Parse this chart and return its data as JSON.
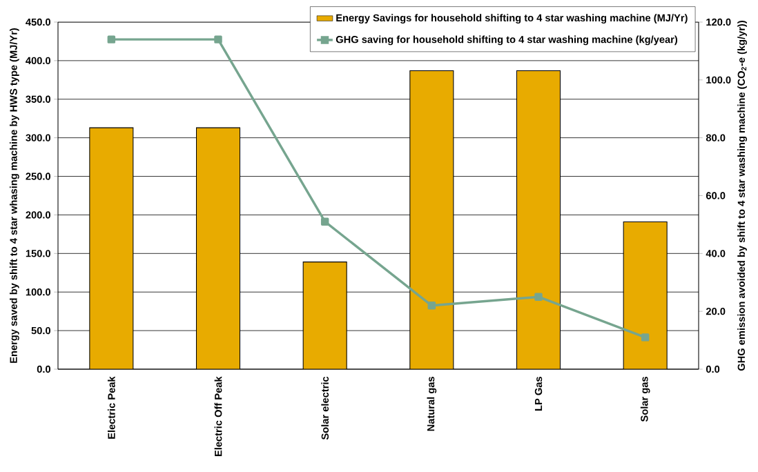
{
  "chart_data": {
    "type": "bar",
    "categories": [
      "Electric Peak",
      "Electric Off Peak",
      "Solar electric",
      "Natural gas",
      "LP Gas",
      "Solar gas"
    ],
    "series": [
      {
        "name": "Energy Savings for household shifting to 4 star washing machine (MJ/Yr)",
        "color": "#e8ab00",
        "values": [
          313,
          313,
          139,
          387,
          387,
          191
        ]
      },
      {
        "name": "GHG saving for household shifting to 4 star washing machine (kg/year)",
        "type": "line",
        "axis": "y2",
        "color": "#76a58f",
        "marker": "square",
        "values": [
          114,
          114,
          51,
          22,
          25,
          11
        ]
      }
    ],
    "ylabel": "Energy saved by shift to 4 star whasing machine by HWS type (MJ/Yr)",
    "y2label": "GHG emission avoided by shift to 4 star washing machine (CO$_{2}$-e (kg/yr))",
    "ylim": [
      0,
      450
    ],
    "yticks": [
      {
        "value": 0,
        "label": "0.0"
      },
      {
        "value": 50,
        "label": "50.0"
      },
      {
        "value": 100,
        "label": "100.0"
      },
      {
        "value": 150,
        "label": "150.0"
      },
      {
        "value": 200,
        "label": "200.0"
      },
      {
        "value": 250,
        "label": "250.0"
      },
      {
        "value": 300,
        "label": "300.0"
      },
      {
        "value": 350,
        "label": "350.0"
      },
      {
        "value": 400,
        "label": "400.0"
      },
      {
        "value": 450,
        "label": "450.0"
      }
    ],
    "y2lim": [
      0,
      120
    ],
    "y2ticks": [
      {
        "value": 0,
        "label": "0.0"
      },
      {
        "value": 20,
        "label": "20.0"
      },
      {
        "value": 40,
        "label": "40.0"
      },
      {
        "value": 60,
        "label": "60.0"
      },
      {
        "value": 80,
        "label": "80.0"
      },
      {
        "value": 100,
        "label": "100.0"
      },
      {
        "value": 120,
        "label": "120.0"
      }
    ],
    "grid": "y",
    "legend": "top right"
  }
}
